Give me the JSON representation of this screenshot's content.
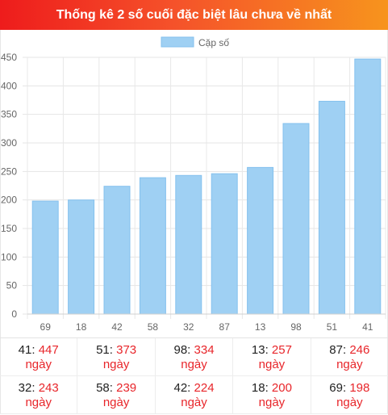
{
  "header": {
    "title": "Thống kê 2 số cuối đặc biệt lâu chưa về nhất"
  },
  "colors": {
    "bar": "#9fd0f3",
    "bar_stroke": "#84c1ee",
    "highlight": "#e8252a"
  },
  "chart_data": {
    "type": "bar",
    "categories": [
      "69",
      "18",
      "42",
      "58",
      "32",
      "87",
      "13",
      "98",
      "51",
      "41"
    ],
    "series": [
      {
        "name": "Cặp số",
        "values": [
          198,
          200,
          224,
          239,
          243,
          246,
          257,
          334,
          373,
          447
        ]
      }
    ],
    "yticks": [
      "0",
      "50",
      "100",
      "150",
      "200",
      "250",
      "300",
      "350",
      "400",
      "450"
    ],
    "ylim": [
      0,
      450
    ],
    "legend_position": "top-center",
    "grid": true
  },
  "stats": {
    "unit": "ngày",
    "rows": [
      [
        {
          "num": "41",
          "value": "447"
        },
        {
          "num": "51",
          "value": "373"
        },
        {
          "num": "98",
          "value": "334"
        },
        {
          "num": "13",
          "value": "257"
        },
        {
          "num": "87",
          "value": "246"
        }
      ],
      [
        {
          "num": "32",
          "value": "243"
        },
        {
          "num": "58",
          "value": "239"
        },
        {
          "num": "42",
          "value": "224"
        },
        {
          "num": "18",
          "value": "200"
        },
        {
          "num": "69",
          "value": "198"
        }
      ]
    ]
  }
}
